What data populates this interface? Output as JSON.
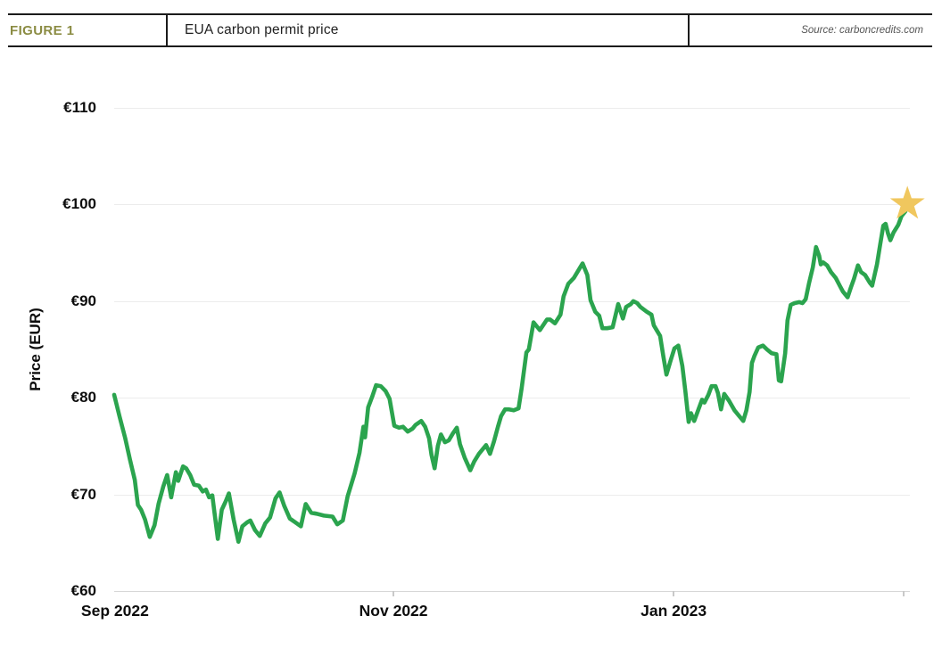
{
  "figure": {
    "label": "FIGURE 1",
    "title": "EUA carbon permit price",
    "source": "Source: carboncredits.com"
  },
  "colors": {
    "figure_label": "#8b8c43",
    "line": "#2ba44e",
    "star": "#f0c75e",
    "grid": "#ececec",
    "axis_line": "#d7d7d7",
    "tick": "#c9c9c9",
    "label_text": "#0d0d0d",
    "source_text": "#555555"
  },
  "chart_data": {
    "type": "line",
    "title": "EUA carbon permit price",
    "xlabel": "",
    "ylabel": "Price (EUR)",
    "ylim": [
      60,
      110
    ],
    "grid": "horizontal-only",
    "legend": "none",
    "y_ticks": [
      {
        "label": "€110",
        "value": 110
      },
      {
        "label": "€100",
        "value": 100
      },
      {
        "label": "€90",
        "value": 90
      },
      {
        "label": "€80",
        "value": 80
      },
      {
        "label": "€70",
        "value": 70
      },
      {
        "label": "€60",
        "value": 60
      }
    ],
    "x_ticks": [
      {
        "label": "Sep 2022",
        "pct": 0.1,
        "notch": false
      },
      {
        "label": "Nov 2022",
        "pct": 35.3,
        "notch": true
      },
      {
        "label": "Jan 2023",
        "pct": 70.7,
        "notch": true
      }
    ],
    "extra_notches_pct": [
      99.8
    ],
    "x_axis_note": "pct = percent of distance along time axis from Sep 1 2022 (0) to late Feb 2023 (100)",
    "series": [
      {
        "name": "EUA carbon permit price (EUR)",
        "color": "#2ba44e",
        "points": [
          [
            0,
            80.3
          ],
          [
            0.7,
            78
          ],
          [
            1.4,
            75.8
          ],
          [
            2,
            73.6
          ],
          [
            2.6,
            71.5
          ],
          [
            3,
            68.9
          ],
          [
            3.4,
            68.4
          ],
          [
            3.9,
            67.4
          ],
          [
            4.5,
            65.6
          ],
          [
            5.1,
            66.8
          ],
          [
            5.6,
            69
          ],
          [
            6.2,
            70.8
          ],
          [
            6.7,
            72
          ],
          [
            7.2,
            69.7
          ],
          [
            7.8,
            72.3
          ],
          [
            8.1,
            71.4
          ],
          [
            8.7,
            72.9
          ],
          [
            9.1,
            72.7
          ],
          [
            9.6,
            72
          ],
          [
            10.1,
            71
          ],
          [
            10.7,
            70.9
          ],
          [
            11.2,
            70.3
          ],
          [
            11.6,
            70.5
          ],
          [
            12,
            69.7
          ],
          [
            12.4,
            69.9
          ],
          [
            12.7,
            68
          ],
          [
            13.1,
            65.4
          ],
          [
            13.6,
            68.4
          ],
          [
            14.1,
            69.3
          ],
          [
            14.5,
            70.1
          ],
          [
            15.1,
            67.4
          ],
          [
            15.7,
            65.1
          ],
          [
            16.2,
            66.7
          ],
          [
            16.8,
            67.1
          ],
          [
            17.2,
            67.3
          ],
          [
            17.8,
            66.3
          ],
          [
            18.4,
            65.7
          ],
          [
            19.1,
            67
          ],
          [
            19.7,
            67.6
          ],
          [
            20.4,
            69.6
          ],
          [
            20.9,
            70.2
          ],
          [
            21.5,
            68.8
          ],
          [
            22.2,
            67.5
          ],
          [
            22.9,
            67.1
          ],
          [
            23.6,
            66.7
          ],
          [
            24.2,
            69
          ],
          [
            24.9,
            68.1
          ],
          [
            25.6,
            68
          ],
          [
            26.5,
            67.8
          ],
          [
            27.6,
            67.7
          ],
          [
            28.2,
            66.9
          ],
          [
            28.9,
            67.3
          ],
          [
            29.5,
            69.8
          ],
          [
            30.4,
            72.2
          ],
          [
            31,
            74.3
          ],
          [
            31.5,
            77
          ],
          [
            31.7,
            75.9
          ],
          [
            32.1,
            79
          ],
          [
            32.6,
            80.1
          ],
          [
            33.1,
            81.3
          ],
          [
            33.7,
            81.2
          ],
          [
            34.3,
            80.7
          ],
          [
            34.8,
            79.9
          ],
          [
            35.4,
            77.1
          ],
          [
            36,
            76.9
          ],
          [
            36.5,
            77
          ],
          [
            37.1,
            76.5
          ],
          [
            37.7,
            76.8
          ],
          [
            38.1,
            77.2
          ],
          [
            38.8,
            77.6
          ],
          [
            39.3,
            77
          ],
          [
            39.8,
            75.8
          ],
          [
            40.1,
            74.1
          ],
          [
            40.5,
            72.7
          ],
          [
            40.9,
            75
          ],
          [
            41.3,
            76.2
          ],
          [
            41.8,
            75.4
          ],
          [
            42.3,
            75.6
          ],
          [
            42.8,
            76.3
          ],
          [
            43.3,
            76.9
          ],
          [
            43.7,
            75.2
          ],
          [
            44.3,
            73.8
          ],
          [
            45,
            72.5
          ],
          [
            45.5,
            73.4
          ],
          [
            46.1,
            74.2
          ],
          [
            46.6,
            74.7
          ],
          [
            47,
            75.1
          ],
          [
            47.5,
            74.2
          ],
          [
            48,
            75.5
          ],
          [
            48.5,
            77
          ],
          [
            48.9,
            78.1
          ],
          [
            49.4,
            78.8
          ],
          [
            49.9,
            78.8
          ],
          [
            50.5,
            78.7
          ],
          [
            51.1,
            78.9
          ],
          [
            51.5,
            81
          ],
          [
            52.1,
            84.7
          ],
          [
            52.4,
            85
          ],
          [
            53,
            87.8
          ],
          [
            53.3,
            87.5
          ],
          [
            53.8,
            87
          ],
          [
            54.7,
            88.1
          ],
          [
            55.1,
            88.1
          ],
          [
            55.7,
            87.7
          ],
          [
            56.4,
            88.6
          ],
          [
            56.8,
            90.5
          ],
          [
            57.4,
            91.8
          ],
          [
            58.1,
            92.4
          ],
          [
            58.9,
            93.5
          ],
          [
            59.2,
            93.9
          ],
          [
            59.8,
            92.7
          ],
          [
            60.2,
            90.1
          ],
          [
            60.8,
            88.9
          ],
          [
            61.3,
            88.5
          ],
          [
            61.7,
            87.2
          ],
          [
            62.3,
            87.2
          ],
          [
            63,
            87.3
          ],
          [
            63.7,
            89.7
          ],
          [
            64.3,
            88.2
          ],
          [
            64.7,
            89.4
          ],
          [
            65.3,
            89.7
          ],
          [
            65.6,
            90
          ],
          [
            66.1,
            89.8
          ],
          [
            66.5,
            89.4
          ],
          [
            67.3,
            88.9
          ],
          [
            67.9,
            88.6
          ],
          [
            68.2,
            87.5
          ],
          [
            69,
            86.4
          ],
          [
            69.4,
            84.3
          ],
          [
            69.8,
            82.4
          ],
          [
            70.3,
            83.8
          ],
          [
            70.8,
            85.1
          ],
          [
            71.3,
            85.4
          ],
          [
            71.8,
            83.3
          ],
          [
            72.2,
            80.6
          ],
          [
            72.6,
            77.5
          ],
          [
            72.9,
            78.4
          ],
          [
            73.3,
            77.6
          ],
          [
            73.8,
            78.7
          ],
          [
            74.3,
            79.8
          ],
          [
            74.6,
            79.5
          ],
          [
            75.1,
            80.3
          ],
          [
            75.5,
            81.2
          ],
          [
            76,
            81.2
          ],
          [
            76.3,
            80.5
          ],
          [
            76.7,
            78.8
          ],
          [
            77.1,
            80.4
          ],
          [
            77.7,
            79.7
          ],
          [
            78.4,
            78.7
          ],
          [
            78.9,
            78.2
          ],
          [
            79.5,
            77.6
          ],
          [
            79.9,
            78.7
          ],
          [
            80.3,
            80.6
          ],
          [
            80.6,
            83.6
          ],
          [
            80.9,
            84.3
          ],
          [
            81.4,
            85.2
          ],
          [
            82,
            85.4
          ],
          [
            82.5,
            85
          ],
          [
            83.1,
            84.6
          ],
          [
            83.7,
            84.5
          ],
          [
            84,
            81.8
          ],
          [
            84.3,
            81.7
          ],
          [
            84.8,
            84.6
          ],
          [
            85.1,
            88
          ],
          [
            85.5,
            89.6
          ],
          [
            86,
            89.8
          ],
          [
            86.6,
            89.9
          ],
          [
            87,
            89.8
          ],
          [
            87.4,
            90.2
          ],
          [
            87.8,
            91.8
          ],
          [
            88.3,
            93.5
          ],
          [
            88.7,
            95.6
          ],
          [
            89.1,
            94.7
          ],
          [
            89.3,
            93.8
          ],
          [
            89.6,
            94
          ],
          [
            90.1,
            93.7
          ],
          [
            90.6,
            93
          ],
          [
            91.2,
            92.4
          ],
          [
            91.7,
            91.6
          ],
          [
            92.1,
            91
          ],
          [
            92.7,
            90.4
          ],
          [
            93.1,
            91.4
          ],
          [
            93.5,
            92.3
          ],
          [
            94,
            93.7
          ],
          [
            94.4,
            93
          ],
          [
            94.9,
            92.7
          ],
          [
            95.5,
            91.9
          ],
          [
            95.8,
            91.6
          ],
          [
            96.4,
            93.8
          ],
          [
            96.8,
            95.8
          ],
          [
            97.2,
            97.8
          ],
          [
            97.5,
            98
          ],
          [
            97.8,
            97
          ],
          [
            98.1,
            96.3
          ],
          [
            98.5,
            97.1
          ],
          [
            99.1,
            97.9
          ],
          [
            99.5,
            98.8
          ],
          [
            100,
            99.3
          ]
        ]
      }
    ],
    "end_marker": {
      "type": "star",
      "color": "#f0c75e",
      "pct": 100.25,
      "value": 100.05
    }
  }
}
